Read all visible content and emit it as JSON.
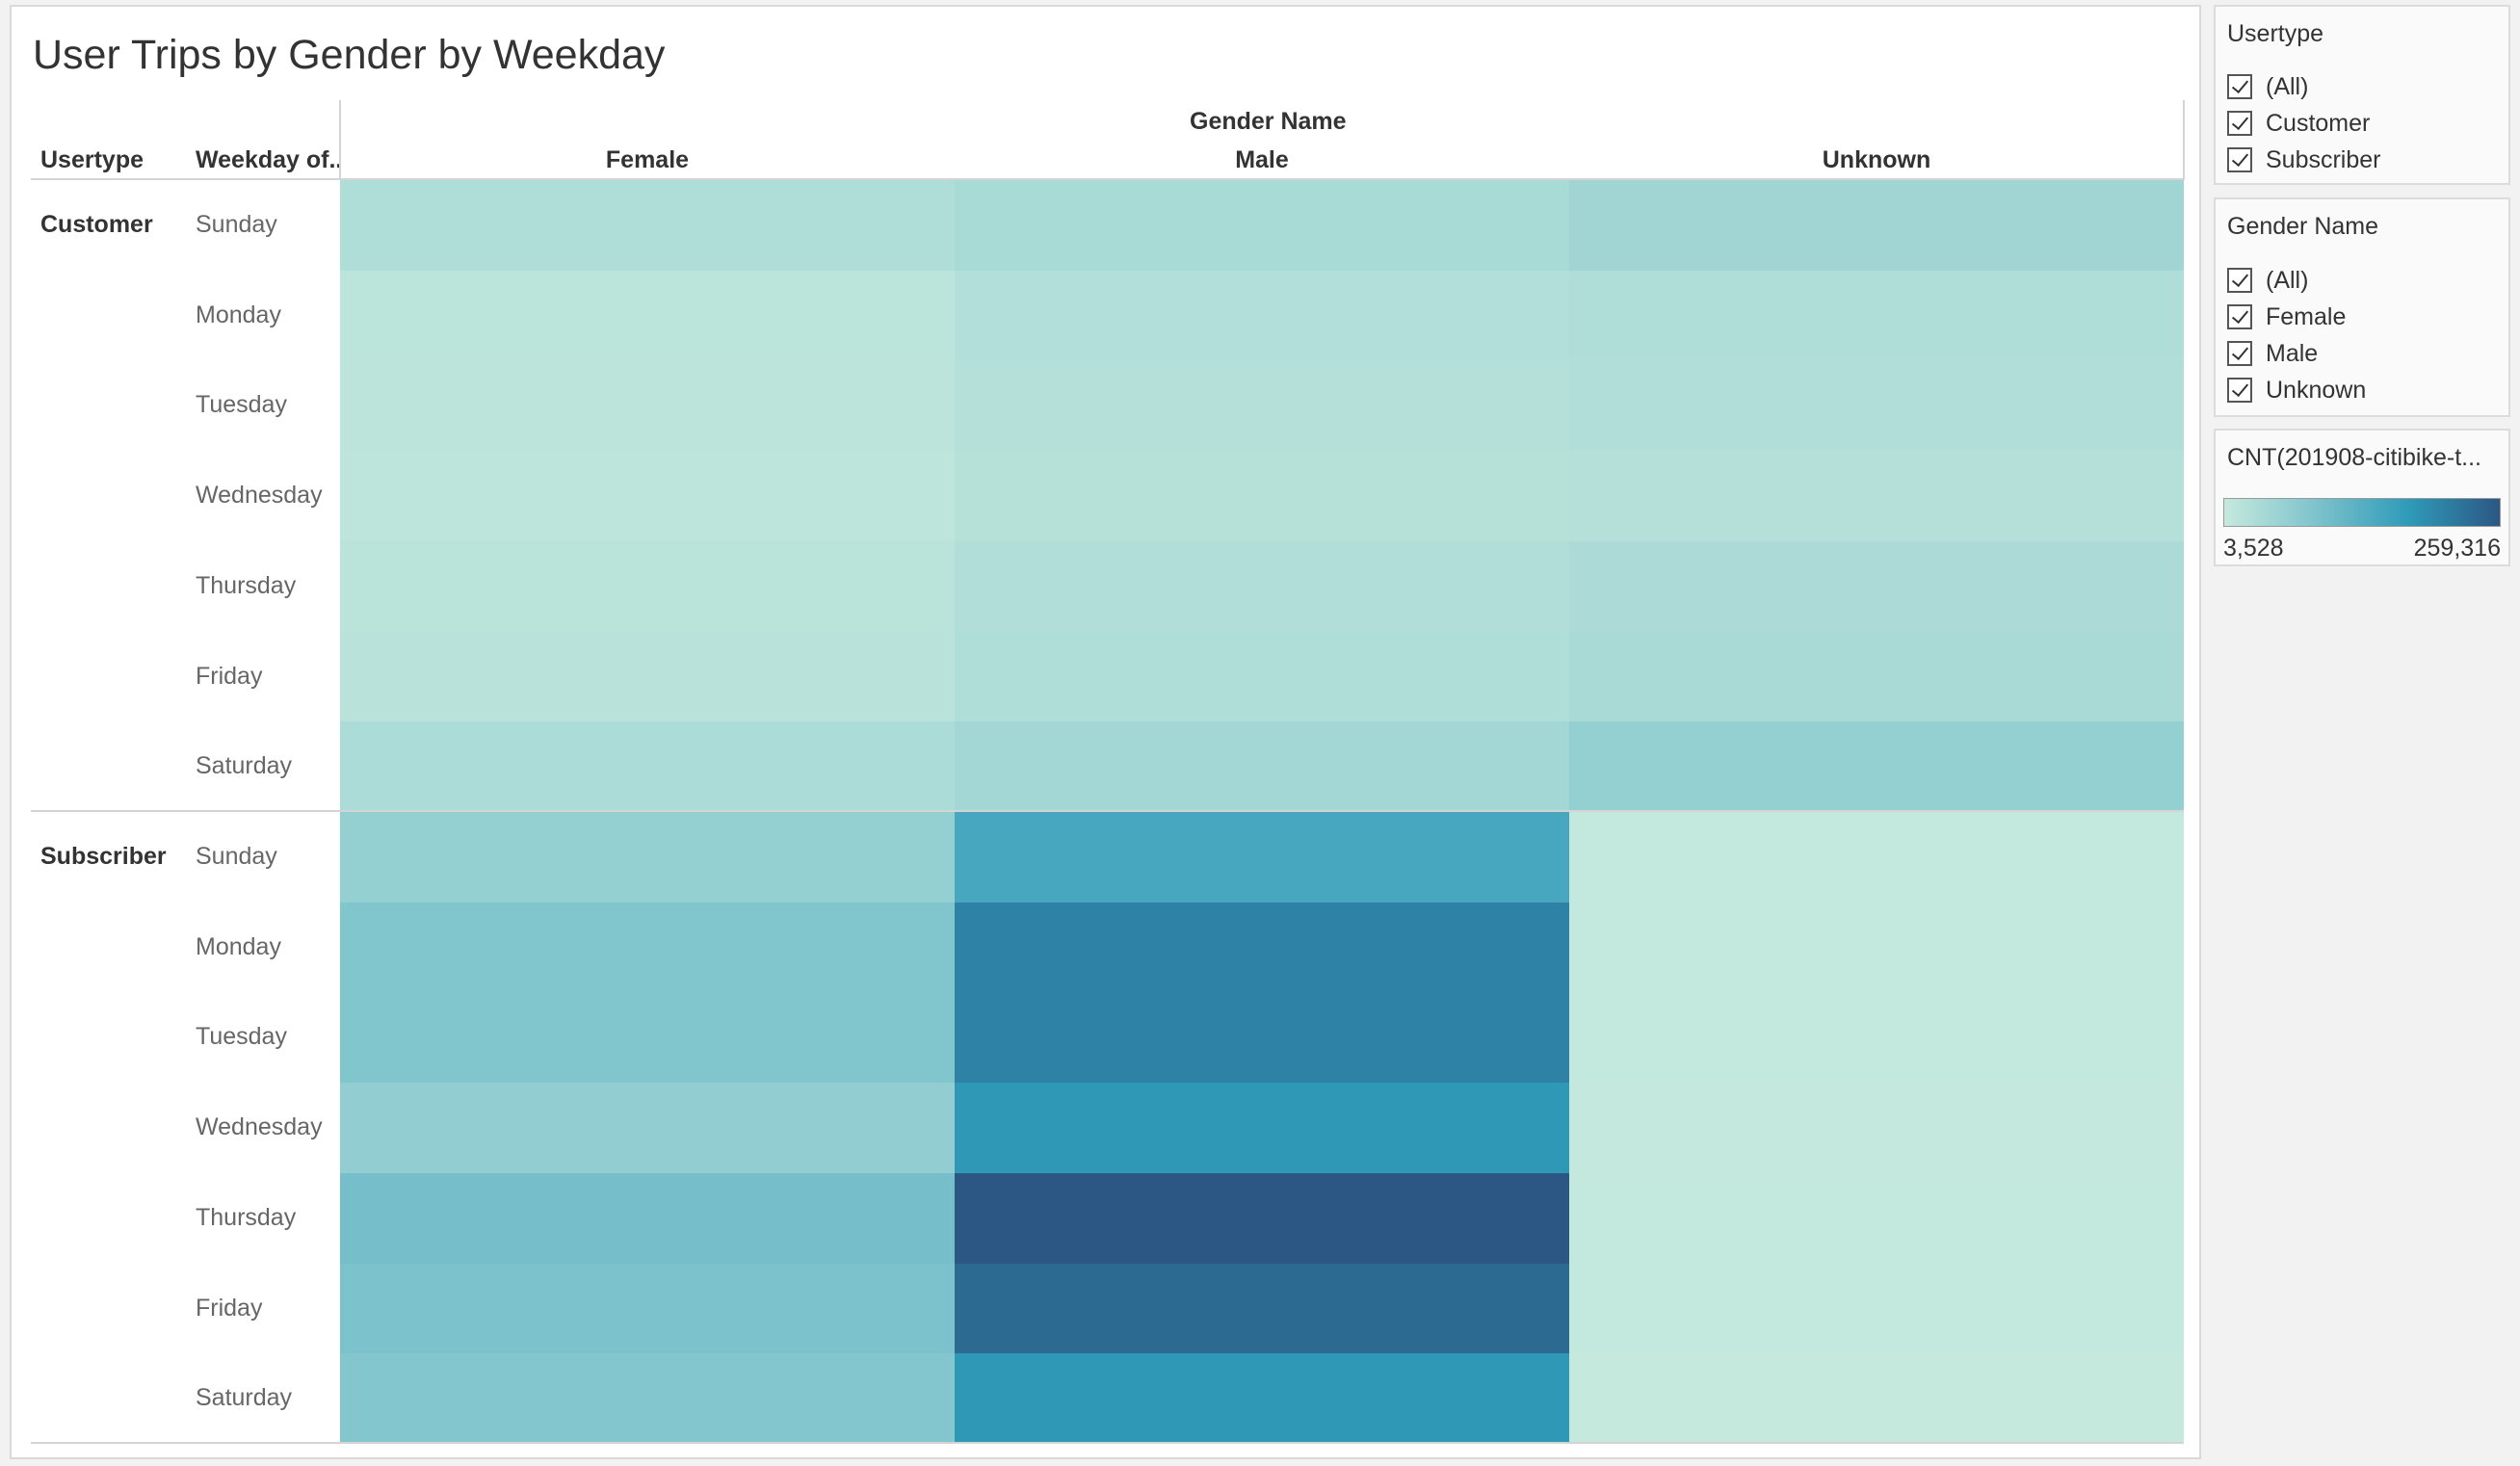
{
  "title": "User Trips by Gender by Weekday",
  "headers": {
    "usertype": "Usertype",
    "weekday": "Weekday of..",
    "gender_group": "Gender Name"
  },
  "chart_data": {
    "type": "heatmap",
    "title": "User Trips by Gender by Weekday",
    "columns_label": "Gender Name",
    "columns": [
      "Female",
      "Male",
      "Unknown"
    ],
    "row_fields": [
      "Usertype",
      "Weekday of.."
    ],
    "groups": [
      {
        "name": "Customer",
        "rows": [
          "Sunday",
          "Monday",
          "Tuesday",
          "Wednesday",
          "Thursday",
          "Friday",
          "Saturday"
        ],
        "values": [
          [
            30000,
            38000,
            48000
          ],
          [
            15000,
            26000,
            30000
          ],
          [
            14000,
            24000,
            28000
          ],
          [
            13000,
            22000,
            24000
          ],
          [
            17000,
            28000,
            34000
          ],
          [
            19000,
            30000,
            37000
          ],
          [
            33000,
            44000,
            62000
          ]
        ]
      },
      {
        "name": "Subscriber",
        "rows": [
          "Sunday",
          "Monday",
          "Tuesday",
          "Wednesday",
          "Thursday",
          "Friday",
          "Saturday"
        ],
        "values": [
          [
            62000,
            148000,
            6000
          ],
          [
            85000,
            206000,
            6000
          ],
          [
            85000,
            206000,
            6000
          ],
          [
            65000,
            178000,
            5000
          ],
          [
            97000,
            259316,
            6000
          ],
          [
            91000,
            236000,
            6000
          ],
          [
            82000,
            178000,
            3528
          ]
        ]
      }
    ],
    "color_scale": {
      "measure": "CNT(201908-citibike-t...",
      "min": 3528,
      "max": 259316,
      "min_label": "3,528",
      "max_label": "259,316",
      "colors": [
        "#c5e9dd",
        "#7ec3cc",
        "#2f9bb9",
        "#2c5784"
      ]
    }
  },
  "filters": {
    "usertype": {
      "title": "Usertype",
      "options": [
        "(All)",
        "Customer",
        "Subscriber"
      ]
    },
    "gender": {
      "title": "Gender Name",
      "options": [
        "(All)",
        "Female",
        "Male",
        "Unknown"
      ]
    }
  },
  "legend": {
    "title": "CNT(201908-citibike-t...",
    "min_label": "3,528",
    "max_label": "259,316"
  }
}
